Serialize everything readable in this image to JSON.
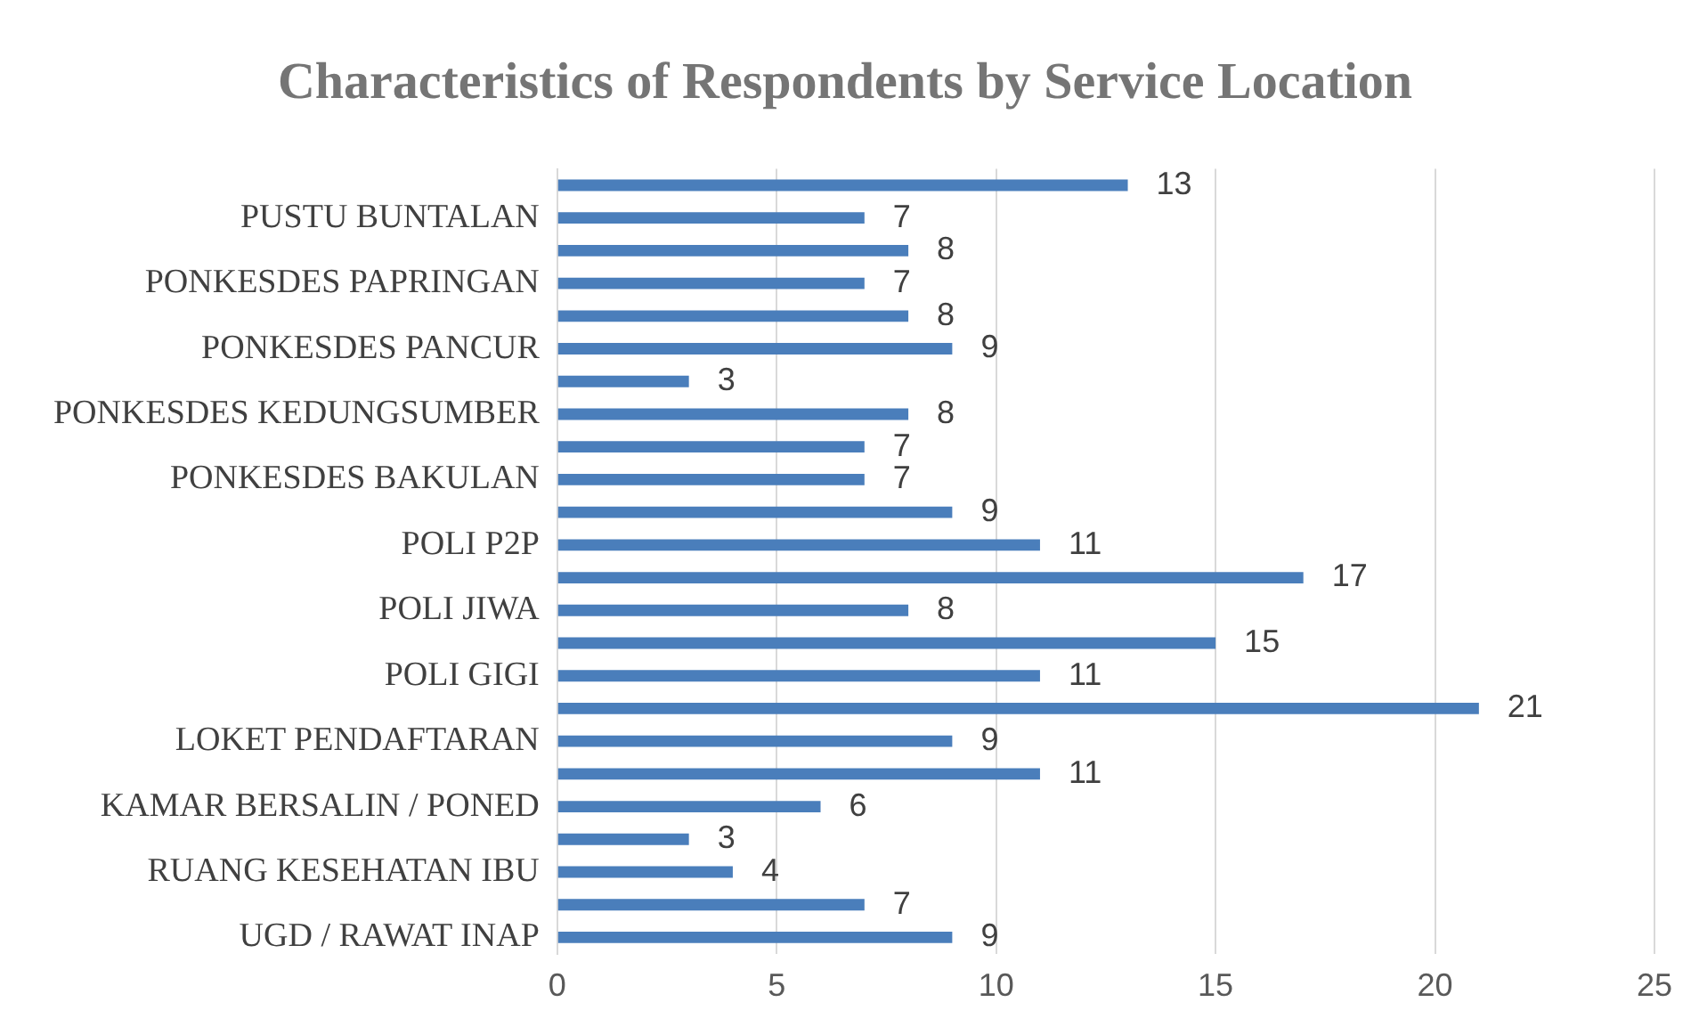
{
  "chart_data": {
    "type": "bar",
    "orientation": "horizontal",
    "title": "Characteristics of Respondents by Service Location",
    "categories": [
      null,
      "PUSTU BUNTALAN",
      null,
      "PONKESDES PAPRINGAN",
      null,
      "PONKESDES PANCUR",
      null,
      "PONKESDES KEDUNGSUMBER",
      null,
      "PONKESDES BAKULAN",
      null,
      "POLI P2P",
      null,
      "POLI JIWA",
      null,
      "POLI GIGI",
      null,
      "LOKET PENDAFTARAN",
      null,
      "KAMAR BERSALIN / PONED",
      null,
      "RUANG KESEHATAN IBU",
      null,
      "UGD / RAWAT INAP"
    ],
    "values": [
      13,
      7,
      8,
      7,
      8,
      9,
      3,
      8,
      7,
      7,
      9,
      11,
      17,
      8,
      15,
      11,
      21,
      9,
      11,
      6,
      3,
      4,
      7,
      9
    ],
    "color": "#4a7ebb",
    "xlim": [
      0,
      25
    ],
    "xticks": [
      0,
      5,
      10,
      15,
      20,
      25
    ],
    "grid": "x",
    "data_labels": true,
    "legend": false
  }
}
